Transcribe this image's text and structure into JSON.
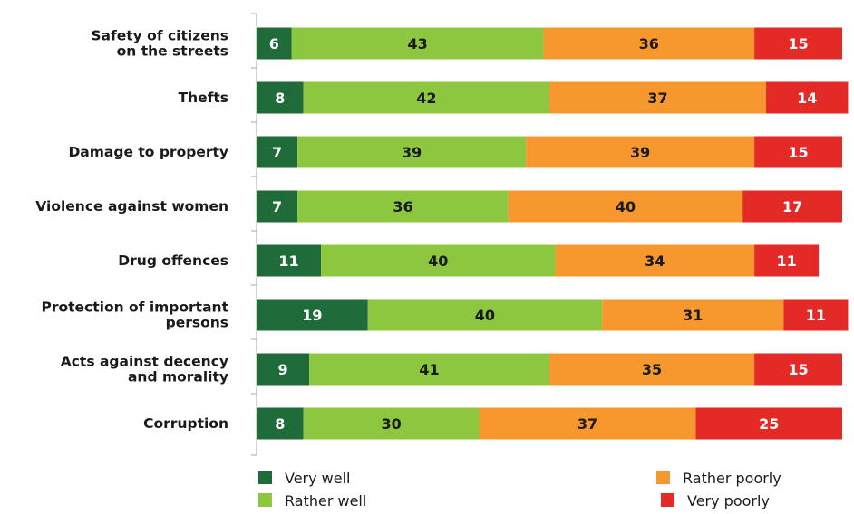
{
  "chart_data": {
    "type": "bar",
    "orientation": "horizontal",
    "stacked": true,
    "categories": [
      [
        "Safety of citizens",
        "on the streets"
      ],
      [
        "Thefts"
      ],
      [
        "Damage to property"
      ],
      [
        "Violence against women"
      ],
      [
        "Drug offences"
      ],
      [
        "Protection of important",
        "persons"
      ],
      [
        "Acts against decency",
        "and morality"
      ],
      [
        "Corruption"
      ]
    ],
    "series": [
      {
        "name": "Very well",
        "color": "#1f6b3a",
        "text_color": "#ffffff",
        "values": [
          6,
          8,
          7,
          7,
          11,
          19,
          9,
          8
        ]
      },
      {
        "name": "Rather well",
        "color": "#8dc63f",
        "text_color": "#1a1a1a",
        "values": [
          43,
          42,
          39,
          36,
          40,
          40,
          41,
          30
        ]
      },
      {
        "name": "Rather poorly",
        "color": "#f7982e",
        "text_color": "#1a1a1a",
        "values": [
          36,
          37,
          39,
          40,
          34,
          31,
          35,
          37
        ]
      },
      {
        "name": "Very poorly",
        "color": "#e42a27",
        "text_color": "#ffffff",
        "values": [
          15,
          14,
          15,
          17,
          11,
          11,
          15,
          25
        ]
      }
    ],
    "xlim": [
      0,
      100
    ],
    "grid": false,
    "legend_position": "bottom"
  }
}
